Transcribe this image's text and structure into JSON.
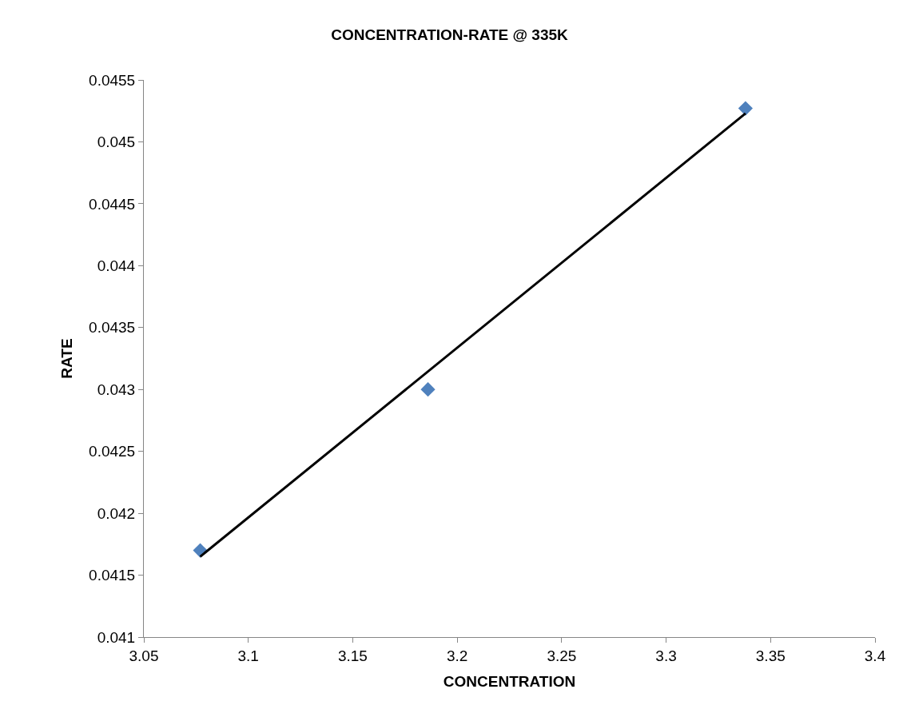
{
  "chart_data": {
    "type": "scatter",
    "title": "CONCENTRATION-RATE @ 335K",
    "xlabel": "CONCENTRATION",
    "ylabel": "RATE",
    "marker": "diamond",
    "legend": false,
    "series": [
      {
        "color": "#4f81bd",
        "x": [
          3.077,
          3.186,
          3.338
        ],
        "values": [
          0.0417,
          0.043,
          0.04527
        ]
      },
      {
        "type": "line",
        "color": "#000000",
        "marker": "none",
        "x": [
          3.077,
          3.338
        ],
        "values": [
          0.04165,
          0.04523
        ]
      }
    ],
    "xlim": [
      3.05,
      3.4
    ],
    "xticks": [
      3.05,
      3.1,
      3.15,
      3.2,
      3.25,
      3.3,
      3.35,
      3.4
    ],
    "ylim": [
      0.041,
      0.0455
    ],
    "yticks": [
      0.041,
      0.0415,
      0.042,
      0.0425,
      0.043,
      0.0435,
      0.044,
      0.0445,
      0.045,
      0.0455
    ]
  }
}
